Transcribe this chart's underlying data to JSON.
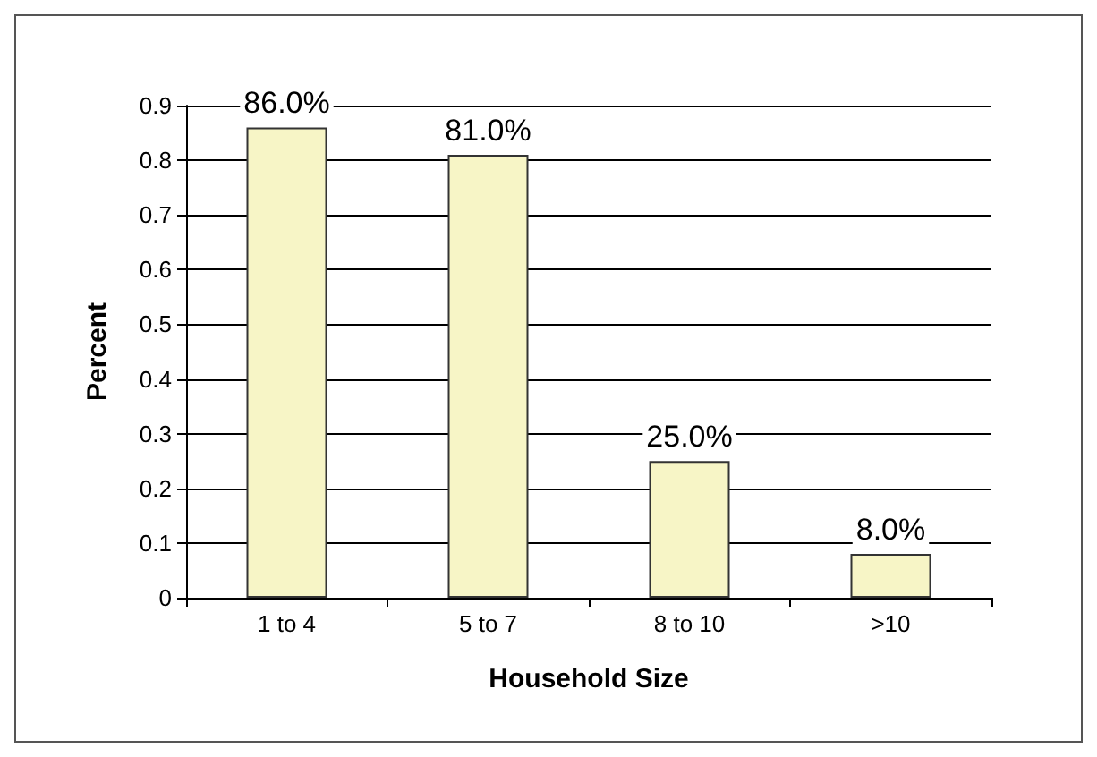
{
  "chart_data": {
    "type": "bar",
    "xlabel": "Household Size",
    "ylabel": "Percent",
    "categories": [
      "1 to 4",
      "5 to 7",
      "8 to 10",
      ">10"
    ],
    "values": [
      0.86,
      0.81,
      0.25,
      0.08
    ],
    "value_labels": [
      "86.0%",
      "81.0%",
      "25.0%",
      "8.0%"
    ],
    "color": "#f7f5c6",
    "ylim": [
      0,
      0.9
    ],
    "yticks": [
      0,
      0.1,
      0.2,
      0.3,
      0.4,
      0.5,
      0.6,
      0.7,
      0.8,
      0.9
    ],
    "grid": "y"
  }
}
